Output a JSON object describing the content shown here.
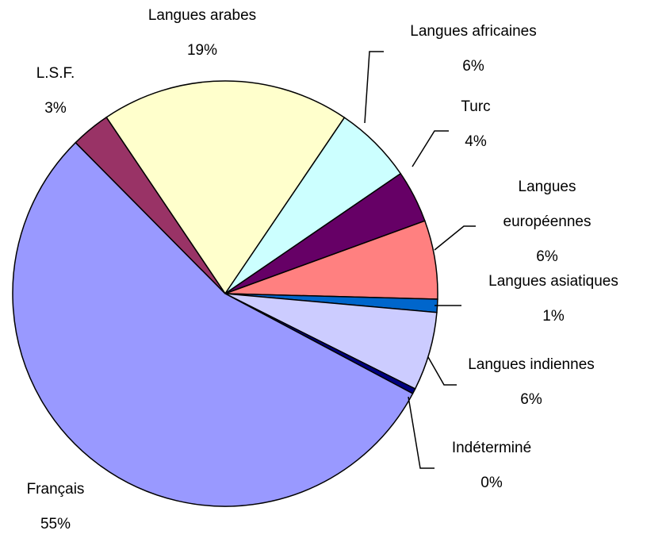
{
  "chart_data": {
    "type": "pie",
    "categories": [
      "Langues arabes",
      "Langues africaines",
      "Turc",
      "Langues européennes",
      "Langues asiatiques",
      "Langues indiennes",
      "Indéterminé",
      "Français",
      "L.S.F."
    ],
    "values": [
      19,
      6,
      4,
      6,
      1,
      6,
      0.4,
      55,
      3
    ],
    "value_labels": [
      "19%",
      "6%",
      "4%",
      "6%",
      "1%",
      "6%",
      "0%",
      "55%",
      "3%"
    ],
    "colors": [
      "#ffffcc",
      "#ccffff",
      "#660066",
      "#ff8080",
      "#0066cc",
      "#ccccff",
      "#000080",
      "#9999ff",
      "#993366"
    ]
  }
}
